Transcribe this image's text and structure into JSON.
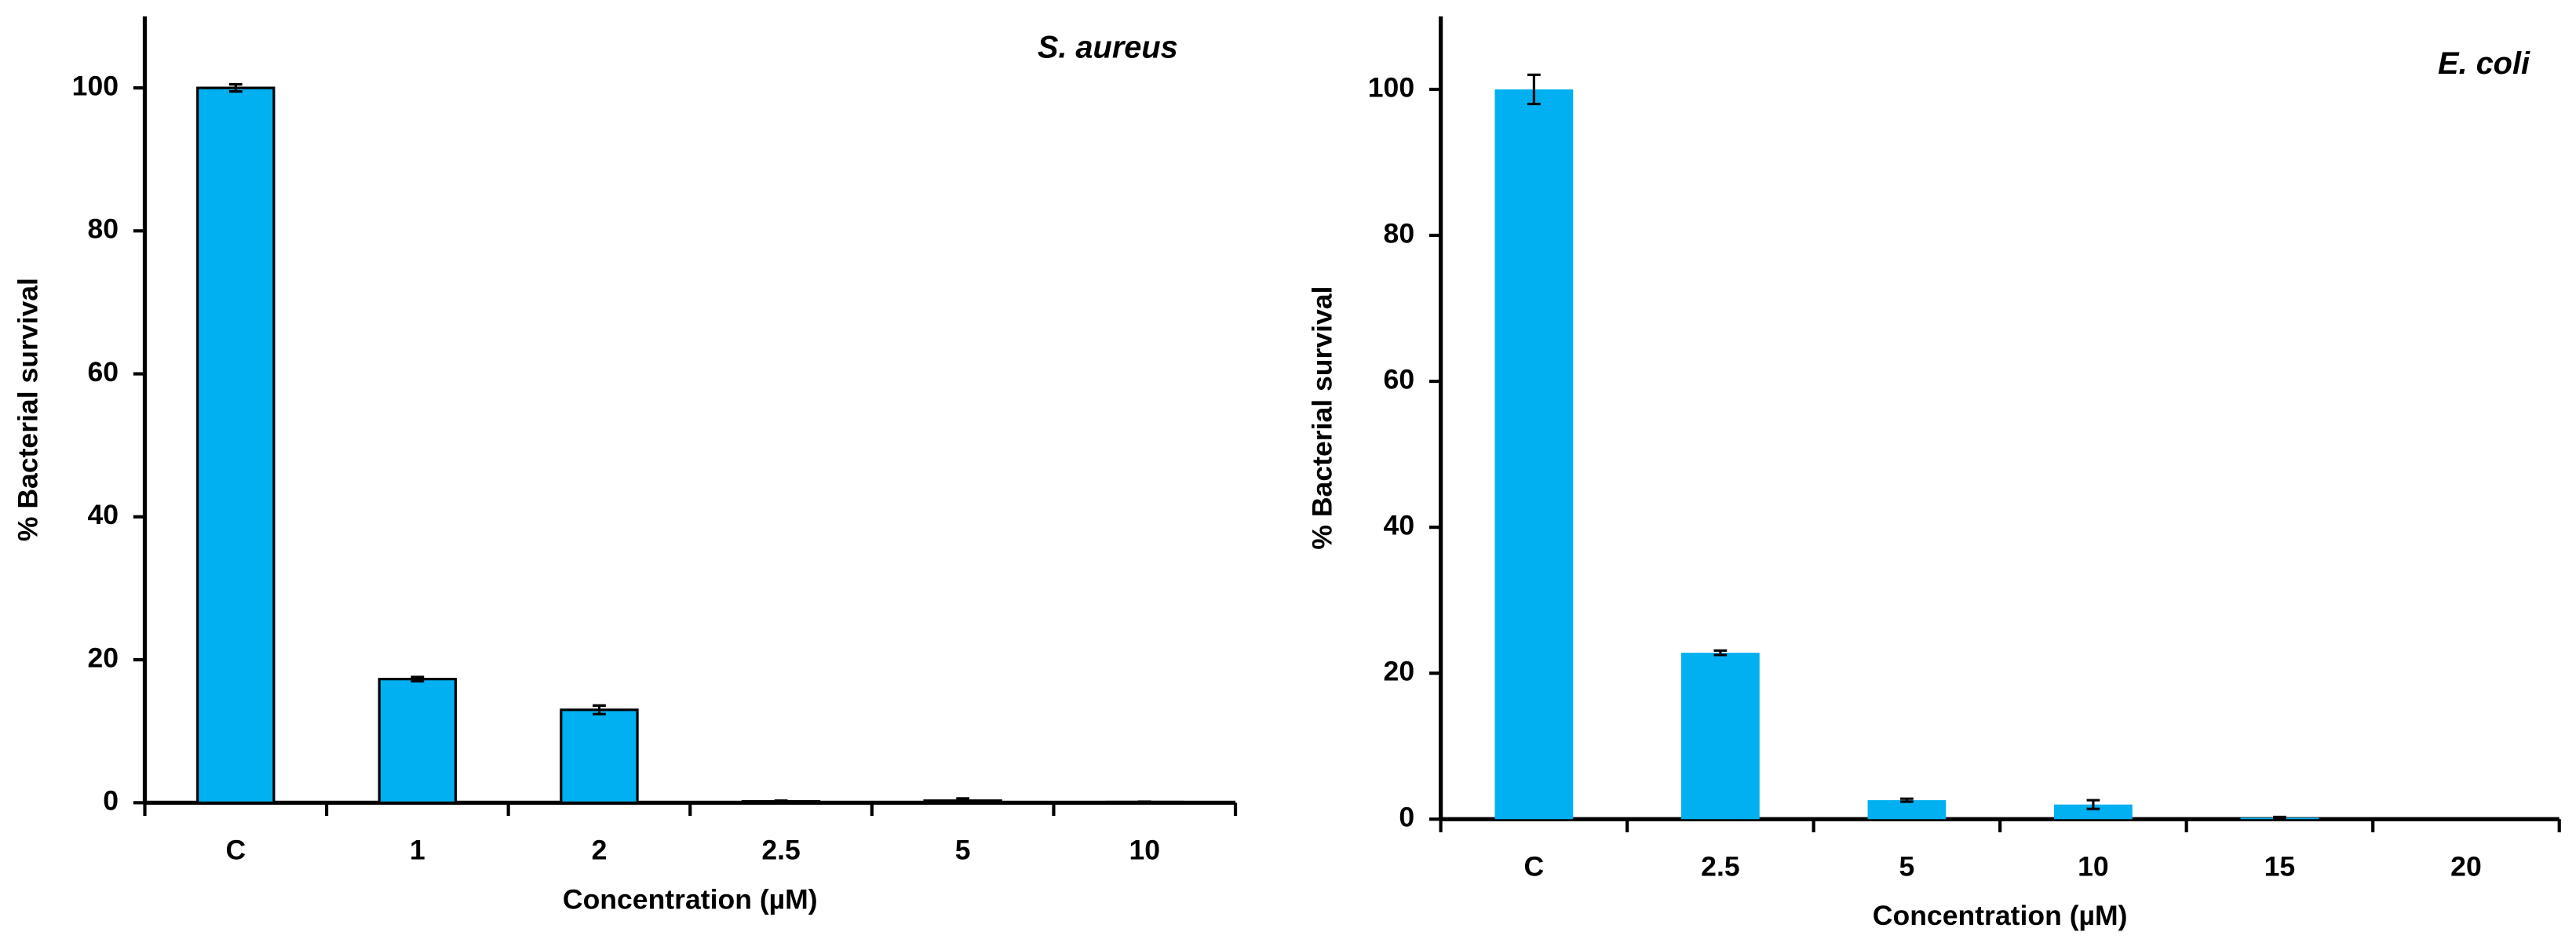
{
  "chart_data": [
    {
      "type": "bar",
      "title": "S. aureus",
      "xlabel": "Concentration (µM)",
      "ylabel": "% Bacterial survival",
      "categories": [
        "C",
        "1",
        "2",
        "2.5",
        "5",
        "10"
      ],
      "values": [
        100,
        17.3,
        13,
        0.2,
        0.3,
        0.1
      ],
      "errors": [
        0.5,
        0.3,
        0.6,
        0.1,
        0.3,
        0.05
      ],
      "color": "#00b0f0",
      "edgecolor": "#000000",
      "ylim": [
        0,
        110
      ],
      "yticks": [
        0,
        20,
        40,
        60,
        80,
        100
      ]
    },
    {
      "type": "bar",
      "title": "E. coli",
      "xlabel": "Concentration (µM)",
      "ylabel": "% Bacterial survival",
      "categories": [
        "C",
        "2.5",
        "5",
        "10",
        "15",
        "20"
      ],
      "values": [
        100,
        22.8,
        2.6,
        2,
        0.2,
        0
      ],
      "errors": [
        2,
        0.3,
        0.2,
        0.6,
        0.1,
        0
      ],
      "color": "#00b0f0",
      "edgecolor": null,
      "ylim": [
        0,
        110
      ],
      "yticks": [
        0,
        20,
        40,
        60,
        80,
        100
      ]
    }
  ]
}
